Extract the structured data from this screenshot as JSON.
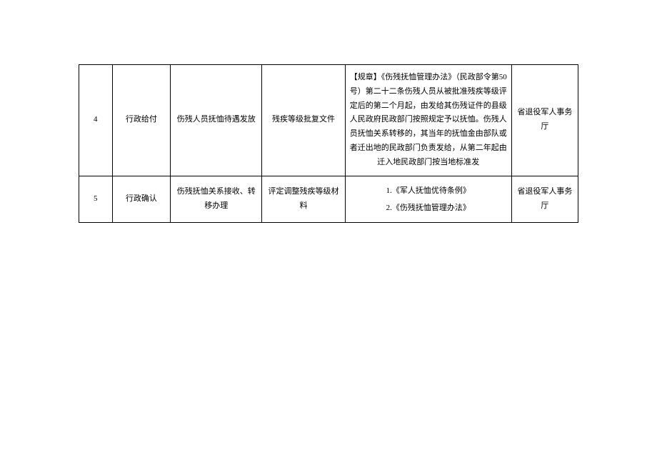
{
  "table": {
    "rows": [
      {
        "seq": "4",
        "type": "行政给付",
        "item": "伤残人员抚恤待遇发放",
        "material": "残疾等级批复文件",
        "basis": "【规章】《伤残抚恤管理办法》（民政部令第50号）第二十二条伤残人员从被批准残疾等级评定后的第二个月起，由发给其伤残证件的县级人民政府民政部门按照规定予以抚恤。伤残人员抚恤关系转移的，其当年的抚恤金由部队或者迁出地的民政部门负责发给，从第二年起由迁入地民政部门按当地标准发",
        "dept": "省退役军人事务厅"
      },
      {
        "seq": "5",
        "type": "行政确认",
        "item": "伤残抚恤关系接收、转移办理",
        "material": "评定调整残疾等级材料",
        "basis_list": [
          "1.《军人抚恤优待条例》",
          "2.《伤残抚恤管理办法》"
        ],
        "dept": "省退役军人事务厅"
      }
    ]
  }
}
